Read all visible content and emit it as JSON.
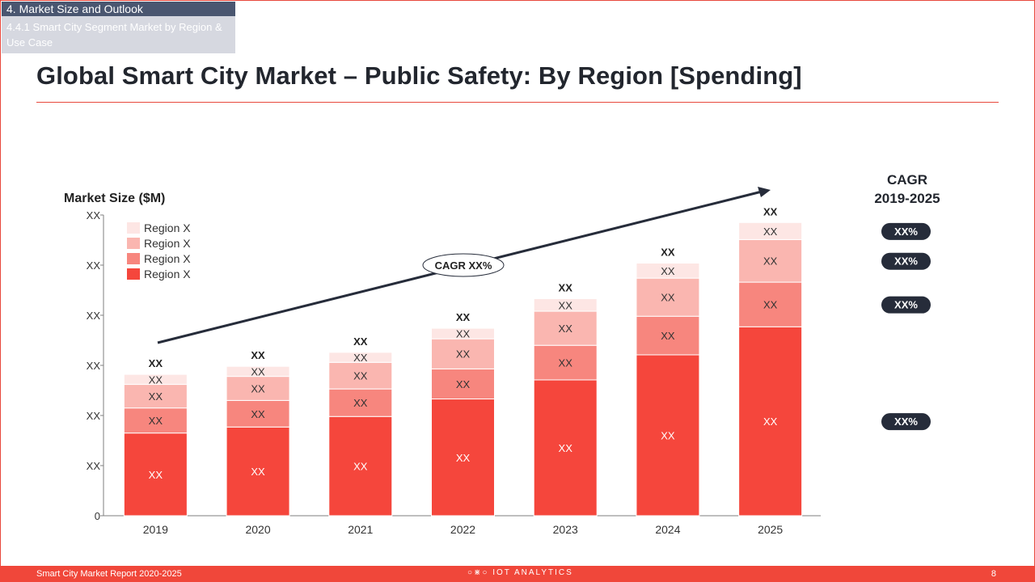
{
  "header": {
    "section": "4. Market Size and Outlook",
    "subsection": "4.4.1 Smart City Segment Market by Region & Use Case",
    "title": "Global Smart City Market – Public Safety: By Region [Spending]"
  },
  "footer": {
    "report": "Smart City Market Report 2020-2025",
    "logo_text": "IOT ANALYTICS",
    "page": "8"
  },
  "colors": {
    "accent": "#f0473a",
    "dark_tab": "#4a5670",
    "light_tab": "#d6d8e0",
    "series": [
      "#f5463c",
      "#f7867e",
      "#fab6b0",
      "#fde6e4"
    ],
    "pill": "#262c3a"
  },
  "cagr_panel": {
    "title_line1": "CAGR",
    "title_line2": "2019-2025",
    "values": [
      "XX%",
      "XX%",
      "XX%",
      "XX%"
    ]
  },
  "chart_data": {
    "type": "bar",
    "stacked": true,
    "ylabel": "Market Size ($M)",
    "categories": [
      "2019",
      "2020",
      "2021",
      "2022",
      "2023",
      "2024",
      "2025"
    ],
    "ylim": [
      0,
      6
    ],
    "yticks": [
      "0",
      "XX",
      "XX",
      "XX",
      "XX",
      "XX",
      "XX"
    ],
    "series": [
      {
        "name": "Region X",
        "values": [
          1.65,
          1.77,
          1.98,
          2.33,
          2.71,
          3.21,
          3.77
        ],
        "labels": [
          "XX",
          "XX",
          "XX",
          "XX",
          "XX",
          "XX",
          "XX"
        ]
      },
      {
        "name": "Region X",
        "values": [
          0.5,
          0.53,
          0.55,
          0.6,
          0.69,
          0.77,
          0.89
        ],
        "labels": [
          "XX",
          "XX",
          "XX",
          "XX",
          "XX",
          "XX",
          "XX"
        ]
      },
      {
        "name": "Region X",
        "values": [
          0.47,
          0.48,
          0.53,
          0.6,
          0.68,
          0.76,
          0.85
        ],
        "labels": [
          "XX",
          "XX",
          "XX",
          "XX",
          "XX",
          "XX",
          "XX"
        ]
      },
      {
        "name": "Region X",
        "values": [
          0.2,
          0.2,
          0.2,
          0.21,
          0.25,
          0.3,
          0.34
        ],
        "labels": [
          "XX",
          "XX",
          "XX",
          "XX",
          "XX",
          "XX",
          "XX"
        ]
      }
    ],
    "totals_labels": [
      "XX",
      "XX",
      "XX",
      "XX",
      "XX",
      "XX",
      "XX"
    ],
    "annotation": "CAGR XX%",
    "legend_position": "top-left",
    "grid": false
  }
}
